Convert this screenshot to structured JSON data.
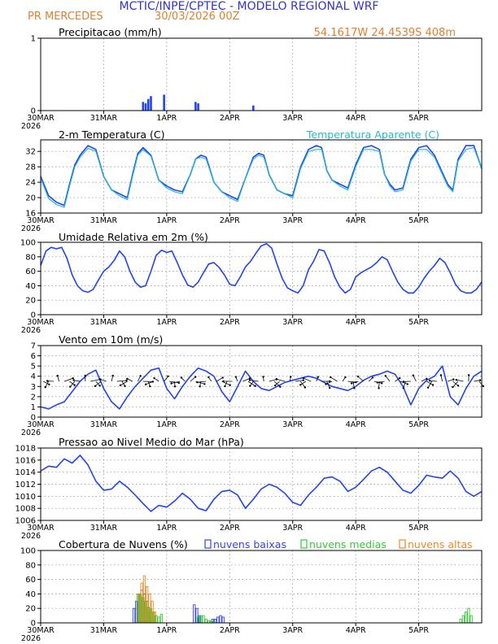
{
  "header": {
    "title": "MCTIC/INPE/CPTEC - MODELO REGIONAL WRF",
    "station": "PR MERCEDES",
    "run": "30/03/2026 00Z",
    "location": "54.1617W 24.4539S 408m"
  },
  "colors": {
    "title_blue": "#3333cc",
    "header_orange": "#e07f30",
    "series_blue": "#2244ee",
    "apparent_cyan": "#22bbcc",
    "cloud_low": "#3344ee",
    "cloud_mid": "#33cc33",
    "cloud_high": "#ee8822"
  },
  "time_axis": {
    "start_hour": 0,
    "end_hour": 168,
    "tick_labels": [
      "30MAR",
      "31MAR",
      "1APR",
      "2APR",
      "3APR",
      "4APR",
      "5APR"
    ],
    "year_label": "2026"
  },
  "chart_data": [
    {
      "id": "precip",
      "type": "bar",
      "title": "Precipitacao (mm/h)",
      "ylim": [
        0,
        1
      ],
      "yticks": [
        0,
        1
      ],
      "x_hours": [
        39,
        40,
        41,
        42,
        47,
        59,
        60,
        81
      ],
      "values": [
        0.12,
        0.1,
        0.16,
        0.2,
        0.22,
        0.12,
        0.1,
        0.07
      ]
    },
    {
      "id": "temp",
      "type": "line",
      "title": "2-m Temperatura (C)",
      "legend": "Temperatura Aparente (C)",
      "ylim": [
        16,
        35
      ],
      "yticks": [
        16,
        20,
        24,
        28,
        32
      ],
      "series": [
        {
          "name": "2-m Temperatura (C)",
          "x": [
            0,
            3,
            6,
            9,
            11,
            13,
            15,
            18,
            21,
            24,
            27,
            30,
            33,
            35,
            37,
            39,
            42,
            45,
            48,
            51,
            54,
            57,
            59,
            61,
            63,
            66,
            69,
            72,
            75,
            78,
            81,
            83,
            85,
            87,
            90,
            93,
            96,
            99,
            102,
            105,
            107,
            109,
            111,
            114,
            117,
            120,
            123,
            126,
            129,
            131,
            133,
            135,
            138,
            141,
            144,
            147,
            150,
            153,
            155,
            157,
            159,
            162,
            165,
            168
          ],
          "values": [
            25.5,
            20.5,
            18.8,
            18.0,
            23.5,
            28.5,
            31.0,
            33.5,
            32.5,
            25.5,
            22.0,
            21.0,
            20.0,
            26.0,
            31.5,
            33.0,
            31.0,
            24.5,
            23.0,
            22.0,
            21.5,
            26.0,
            30.0,
            31.0,
            30.5,
            24.0,
            21.5,
            20.5,
            19.5,
            25.0,
            30.5,
            31.5,
            31.0,
            26.0,
            22.0,
            21.0,
            20.5,
            28.0,
            32.5,
            33.5,
            33.0,
            27.0,
            24.5,
            23.5,
            22.5,
            28.5,
            33.0,
            33.5,
            32.5,
            26.0,
            23.5,
            22.0,
            22.5,
            30.0,
            33.0,
            33.5,
            31.0,
            26.5,
            23.5,
            22.0,
            30.0,
            33.5,
            33.5,
            27.5
          ]
        },
        {
          "name": "Temperatura Aparente (C)",
          "x": [
            0,
            3,
            6,
            9,
            11,
            13,
            15,
            18,
            21,
            24,
            27,
            30,
            33,
            35,
            37,
            39,
            42,
            45,
            48,
            51,
            54,
            57,
            59,
            61,
            63,
            66,
            69,
            72,
            75,
            78,
            81,
            83,
            85,
            87,
            90,
            93,
            96,
            99,
            102,
            105,
            107,
            109,
            111,
            114,
            117,
            120,
            123,
            126,
            129,
            131,
            133,
            135,
            138,
            141,
            144,
            147,
            150,
            153,
            155,
            157,
            159,
            162,
            165,
            168
          ],
          "values": [
            25.0,
            19.8,
            18.2,
            17.5,
            23.0,
            28.0,
            30.5,
            32.8,
            32.0,
            25.5,
            22.0,
            20.5,
            19.5,
            25.5,
            31.0,
            32.5,
            30.8,
            24.5,
            22.5,
            21.5,
            21.0,
            26.0,
            30.0,
            30.5,
            30.0,
            24.0,
            21.5,
            20.0,
            19.0,
            25.0,
            30.0,
            31.0,
            30.5,
            26.0,
            22.0,
            21.0,
            20.0,
            27.5,
            32.0,
            32.5,
            32.5,
            27.0,
            24.5,
            23.0,
            22.0,
            28.0,
            32.5,
            32.5,
            32.0,
            26.0,
            23.0,
            21.5,
            22.0,
            29.5,
            32.5,
            32.5,
            30.5,
            26.0,
            23.0,
            21.5,
            29.5,
            32.5,
            33.0,
            27.5
          ]
        }
      ]
    },
    {
      "id": "rh",
      "type": "line",
      "title": "Umidade Relativa em 2m (%)",
      "ylim": [
        0,
        100
      ],
      "yticks": [
        0,
        20,
        40,
        60,
        80,
        100
      ],
      "series": [
        {
          "name": "Umidade Relativa em 2m (%)",
          "x": [
            0,
            2,
            4,
            6,
            8,
            10,
            12,
            14,
            16,
            18,
            20,
            22,
            24,
            26,
            28,
            30,
            32,
            34,
            36,
            38,
            40,
            42,
            44,
            46,
            48,
            50,
            52,
            54,
            56,
            58,
            60,
            62,
            64,
            66,
            68,
            70,
            72,
            74,
            76,
            78,
            80,
            82,
            84,
            86,
            88,
            90,
            92,
            94,
            96,
            98,
            100,
            102,
            104,
            106,
            108,
            110,
            112,
            114,
            116,
            118,
            120,
            122,
            124,
            126,
            128,
            130,
            132,
            134,
            136,
            138,
            140,
            142,
            144,
            146,
            148,
            150,
            152,
            154,
            156,
            158,
            160,
            162,
            164,
            166,
            168
          ],
          "values": [
            68,
            88,
            93,
            91,
            93,
            78,
            55,
            40,
            33,
            31,
            35,
            48,
            60,
            66,
            75,
            88,
            80,
            60,
            45,
            38,
            40,
            60,
            82,
            89,
            86,
            88,
            72,
            55,
            41,
            38,
            45,
            58,
            70,
            72,
            65,
            55,
            42,
            40,
            52,
            66,
            74,
            85,
            95,
            98,
            92,
            70,
            50,
            37,
            33,
            30,
            40,
            62,
            74,
            90,
            88,
            72,
            52,
            38,
            30,
            35,
            52,
            58,
            62,
            66,
            72,
            80,
            76,
            60,
            45,
            35,
            30,
            30,
            38,
            50,
            60,
            68,
            78,
            72,
            58,
            42,
            33,
            30,
            30,
            35,
            45
          ]
        }
      ]
    },
    {
      "id": "wind",
      "type": "line",
      "title": "Vento em 10m (m/s)",
      "ylim": [
        0,
        7
      ],
      "yticks": [
        0,
        1,
        2,
        3,
        4,
        5,
        6,
        7
      ],
      "series": [
        {
          "name": "Vento em 10m (m/s)",
          "x": [
            0,
            3,
            6,
            9,
            12,
            15,
            18,
            21,
            24,
            27,
            30,
            33,
            36,
            39,
            42,
            45,
            48,
            51,
            54,
            57,
            60,
            63,
            66,
            69,
            72,
            75,
            78,
            81,
            84,
            87,
            90,
            93,
            96,
            99,
            102,
            105,
            108,
            111,
            114,
            117,
            120,
            123,
            126,
            129,
            132,
            135,
            138,
            141,
            144,
            147,
            150,
            153,
            156,
            159,
            162,
            165,
            168
          ],
          "values": [
            1.0,
            0.8,
            1.2,
            1.5,
            2.5,
            3.5,
            4.2,
            4.6,
            2.8,
            1.5,
            0.8,
            2.0,
            3.0,
            3.8,
            4.6,
            4.8,
            2.8,
            1.8,
            3.0,
            4.0,
            4.8,
            4.5,
            4.0,
            2.5,
            1.5,
            3.0,
            4.5,
            3.5,
            2.8,
            2.6,
            3.0,
            3.4,
            3.6,
            3.8,
            4.0,
            3.8,
            3.4,
            3.0,
            2.8,
            2.6,
            3.0,
            3.6,
            4.0,
            4.2,
            4.5,
            4.2,
            3.0,
            1.2,
            2.8,
            3.6,
            4.0,
            5.0,
            2.0,
            1.2,
            2.8,
            4.0,
            4.5
          ]
        }
      ]
    },
    {
      "id": "pressure",
      "type": "line",
      "title": "Pressao ao Nivel Medio do Mar (hPa)",
      "ylim": [
        1006,
        1018
      ],
      "yticks": [
        1006,
        1008,
        1010,
        1012,
        1014,
        1016,
        1018
      ],
      "series": [
        {
          "name": "Pressao ao Nivel Medio do Mar (hPa)",
          "x": [
            0,
            3,
            6,
            9,
            12,
            15,
            18,
            21,
            24,
            27,
            30,
            33,
            36,
            39,
            42,
            45,
            48,
            51,
            54,
            57,
            60,
            63,
            66,
            69,
            72,
            75,
            78,
            81,
            84,
            87,
            90,
            93,
            96,
            99,
            102,
            105,
            108,
            111,
            114,
            117,
            120,
            123,
            126,
            129,
            132,
            135,
            138,
            141,
            144,
            147,
            150,
            153,
            156,
            159,
            162,
            165,
            168
          ],
          "values": [
            1014.2,
            1015.0,
            1014.8,
            1016.2,
            1015.5,
            1016.8,
            1015.2,
            1012.5,
            1011.0,
            1011.2,
            1012.5,
            1011.5,
            1010.2,
            1008.8,
            1007.5,
            1008.5,
            1008.2,
            1009.2,
            1010.5,
            1009.5,
            1008.0,
            1007.6,
            1009.5,
            1010.8,
            1011.0,
            1010.2,
            1008.0,
            1009.5,
            1011.2,
            1012.0,
            1011.5,
            1010.5,
            1009.0,
            1008.5,
            1010.2,
            1011.5,
            1013.0,
            1013.2,
            1012.5,
            1010.8,
            1011.5,
            1012.8,
            1014.2,
            1014.8,
            1014.0,
            1012.5,
            1011.0,
            1010.5,
            1011.8,
            1013.5,
            1013.2,
            1013.0,
            1014.2,
            1013.0,
            1010.8,
            1010.0,
            1010.8
          ]
        }
      ]
    },
    {
      "id": "clouds",
      "type": "bar",
      "title": "Cobertura de Nuvens (%)",
      "legend": [
        "nuvens baixas",
        "nuvens medias",
        "nuvens altas"
      ],
      "ylim": [
        0,
        100
      ],
      "yticks": [
        0,
        20,
        40,
        60,
        80,
        100
      ],
      "series": [
        {
          "name": "nuvens baixas",
          "x": [
            36,
            37,
            38,
            39,
            40,
            41,
            42,
            59,
            60,
            61,
            66,
            67,
            68,
            69,
            70
          ],
          "values": [
            20,
            30,
            40,
            45,
            40,
            30,
            15,
            25,
            20,
            10,
            5,
            5,
            8,
            10,
            8
          ]
        },
        {
          "name": "nuvens medias",
          "x": [
            37,
            38,
            39,
            40,
            41,
            42,
            43,
            44,
            45,
            46,
            60,
            61,
            62,
            63,
            64,
            65,
            66,
            160,
            161,
            162,
            163,
            164
          ],
          "values": [
            40,
            40,
            35,
            30,
            22,
            20,
            15,
            10,
            8,
            12,
            8,
            10,
            10,
            5,
            3,
            3,
            2,
            5,
            10,
            15,
            20,
            10
          ]
        },
        {
          "name": "nuvens altas",
          "x": [
            37,
            38,
            39,
            40,
            41,
            42,
            43
          ],
          "values": [
            40,
            55,
            65,
            50,
            40,
            30,
            15
          ]
        }
      ]
    }
  ]
}
